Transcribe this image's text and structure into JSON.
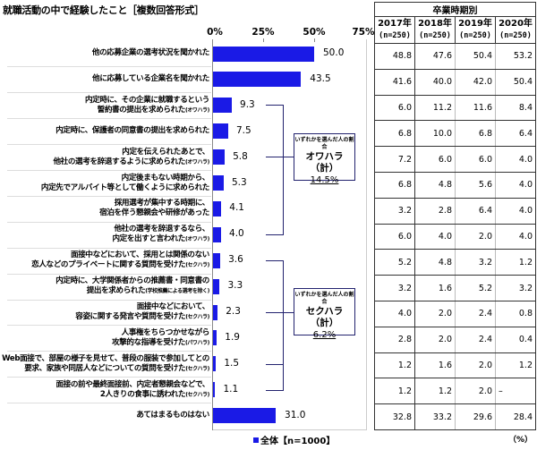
{
  "title": "就職活動の中で経験したこと［複数回答形式］",
  "axis": {
    "ticks": [
      "0%",
      "25%",
      "50%",
      "75%"
    ]
  },
  "legend": {
    "label": "全体【n=1000】",
    "color": "#1a1ae6"
  },
  "table": {
    "group_header": "卒業時期別",
    "columns": [
      {
        "year": "2017年",
        "n": "(n=250)"
      },
      {
        "year": "2018年",
        "n": "(n=250)"
      },
      {
        "year": "2019年",
        "n": "(n=250)"
      },
      {
        "year": "2020年",
        "n": "(n=250)"
      }
    ],
    "unit": "（%）"
  },
  "rows": [
    {
      "line1": "他の応募企業の選考状況を聞かれた",
      "line2": "",
      "note": "",
      "total": "50.0",
      "years": [
        "48.8",
        "47.6",
        "50.4",
        "53.2"
      ]
    },
    {
      "line1": "他に応募している企業名を聞かれた",
      "line2": "",
      "note": "",
      "total": "43.5",
      "years": [
        "41.6",
        "40.0",
        "42.0",
        "50.4"
      ]
    },
    {
      "line1": "内定時に、その企業に就職するという",
      "line2": "誓約書の提出を求められた",
      "note": "(オワハラ)",
      "total": "9.3",
      "years": [
        "6.0",
        "11.2",
        "11.6",
        "8.4"
      ]
    },
    {
      "line1": "内定時に、保護者の同意書の提出を求められた",
      "line2": "",
      "note": "",
      "total": "7.5",
      "years": [
        "6.8",
        "10.0",
        "6.8",
        "6.4"
      ]
    },
    {
      "line1": "内定を伝えられたあとで、",
      "line2": "他社の選考を辞退するように求められた",
      "note": "(オワハラ)",
      "total": "5.8",
      "years": [
        "7.2",
        "6.0",
        "6.0",
        "4.0"
      ]
    },
    {
      "line1": "内定後まもない時期から、",
      "line2": "内定先でアルバイト等として働くように求められた",
      "note": "",
      "total": "5.3",
      "years": [
        "6.8",
        "4.8",
        "5.6",
        "4.0"
      ]
    },
    {
      "line1": "採用選考が集中する時期に、",
      "line2": "宿泊を伴う懇親会や研修があった",
      "note": "",
      "total": "4.1",
      "years": [
        "3.2",
        "2.8",
        "6.4",
        "4.0"
      ]
    },
    {
      "line1": "他社の選考を辞退するなら、",
      "line2": "内定を出すと言われた",
      "note": "(オワハラ)",
      "total": "4.0",
      "years": [
        "6.0",
        "4.0",
        "2.0",
        "4.0"
      ]
    },
    {
      "line1": "面接中などにおいて、採用とは関係のない",
      "line2": "恋人などのプライベートに関する質問を受けた",
      "note": "(セクハラ)",
      "total": "3.6",
      "years": [
        "5.2",
        "4.8",
        "3.2",
        "1.2"
      ]
    },
    {
      "line1": "内定時に、大学関係者からの推薦書・同意書の",
      "line2": "提出を求められた",
      "note": "(学校推薦による選考を除く)",
      "total": "3.3",
      "years": [
        "3.2",
        "1.6",
        "5.2",
        "3.2"
      ]
    },
    {
      "line1": "面接中などにおいて、",
      "line2": "容姿に関する発言や質問を受けた",
      "note": "(セクハラ)",
      "total": "2.3",
      "years": [
        "4.0",
        "2.0",
        "2.4",
        "0.8"
      ]
    },
    {
      "line1": "人事権をちらつかせながら",
      "line2": "攻撃的な指導を受けた",
      "note": "(パワハラ)",
      "total": "1.9",
      "years": [
        "2.8",
        "2.0",
        "2.4",
        "0.4"
      ]
    },
    {
      "line1": "Web面接で、部屋の様子を見せて、普段の服装で参加してとの",
      "line2": "要求、家族や同居人などについての質問を受けた",
      "note": "(セクハラ)",
      "total": "1.5",
      "years": [
        "1.2",
        "1.6",
        "2.0",
        "1.2"
      ]
    },
    {
      "line1": "面接の前や最終面接前、内定者懇親会などで、",
      "line2": "2人きりの食事に誘われた",
      "note": "(セクハラ)",
      "total": "1.1",
      "years": [
        "1.2",
        "1.2",
        "2.0",
        "–"
      ]
    },
    {
      "line1": "あてはまるものはない",
      "line2": "",
      "note": "",
      "total": "31.0",
      "years": [
        "32.8",
        "33.2",
        "29.6",
        "28.4"
      ]
    }
  ],
  "summaries": [
    {
      "caption": "いずれかを選んだ人の割合",
      "name": "オワハラ（計）",
      "pct": "14.5%"
    },
    {
      "caption": "いずれかを選んだ人の割合",
      "name": "セクハラ（計）",
      "pct": "6.2%"
    }
  ],
  "chart_data": {
    "type": "bar",
    "orientation": "horizontal",
    "title": "就職活動の中で経験したこと［複数回答形式］",
    "xlabel": "",
    "ylabel": "",
    "xlim": [
      0,
      75
    ],
    "x_ticks": [
      "0%",
      "25%",
      "50%",
      "75%"
    ],
    "legend": [
      "全体【n=1000】"
    ],
    "categories": [
      "他の応募企業の選考状況を聞かれた",
      "他に応募している企業名を聞かれた",
      "内定時に、その企業に就職するという誓約書の提出を求められた(オワハラ)",
      "内定時に、保護者の同意書の提出を求められた",
      "内定を伝えられたあとで、他社の選考を辞退するように求められた(オワハラ)",
      "内定後まもない時期から、内定先でアルバイト等として働くように求められた",
      "採用選考が集中する時期に、宿泊を伴う懇親会や研修があった",
      "他社の選考を辞退するなら、内定を出すと言われた(オワハラ)",
      "面接中などにおいて、採用とは関係のない恋人などのプライベートに関する質問を受けた(セクハラ)",
      "内定時に、大学関係者からの推薦書・同意書の提出を求められた(学校推薦による選考を除く)",
      "面接中などにおいて、容姿に関する発言や質問を受けた(セクハラ)",
      "人事権をちらつかせながら攻撃的な指導を受けた(パワハラ)",
      "Web面接で、部屋の様子を見せて、普段の服装で参加してとの要求、家族や同居人などについての質問を受けた(セクハラ)",
      "面接の前や最終面接前、内定者懇親会などで、2人きりの食事に誘われた(セクハラ)",
      "あてはまるものはない"
    ],
    "series": [
      {
        "name": "全体【n=1000】",
        "values": [
          50.0,
          43.5,
          9.3,
          7.5,
          5.8,
          5.3,
          4.1,
          4.0,
          3.6,
          3.3,
          2.3,
          1.9,
          1.5,
          1.1,
          31.0
        ]
      }
    ],
    "table_series": [
      {
        "name": "2017年 (n=250)",
        "values": [
          48.8,
          41.6,
          6.0,
          6.8,
          7.2,
          6.8,
          3.2,
          6.0,
          5.2,
          3.2,
          4.0,
          2.8,
          1.2,
          1.2,
          32.8
        ]
      },
      {
        "name": "2018年 (n=250)",
        "values": [
          47.6,
          40.0,
          11.2,
          10.0,
          6.0,
          4.8,
          2.8,
          4.0,
          4.8,
          1.6,
          2.0,
          2.0,
          1.6,
          1.2,
          33.2
        ]
      },
      {
        "name": "2019年 (n=250)",
        "values": [
          50.4,
          42.0,
          11.6,
          6.8,
          6.0,
          5.6,
          6.4,
          2.0,
          3.2,
          5.2,
          2.4,
          2.4,
          2.0,
          2.0,
          29.6
        ]
      },
      {
        "name": "2020年 (n=250)",
        "values": [
          53.2,
          50.4,
          8.4,
          6.4,
          4.0,
          4.0,
          4.0,
          4.0,
          1.2,
          3.2,
          0.8,
          0.4,
          1.2,
          null,
          28.4
        ]
      }
    ],
    "annotations": [
      {
        "text": "いずれかを選んだ人の割合 オワハラ（計） 14.5%",
        "applies_to_rows": [
          2,
          4,
          7
        ]
      },
      {
        "text": "いずれかを選んだ人の割合 セクハラ（計） 6.2%",
        "applies_to_rows": [
          8,
          10,
          12,
          13
        ]
      }
    ],
    "unit": "%"
  }
}
